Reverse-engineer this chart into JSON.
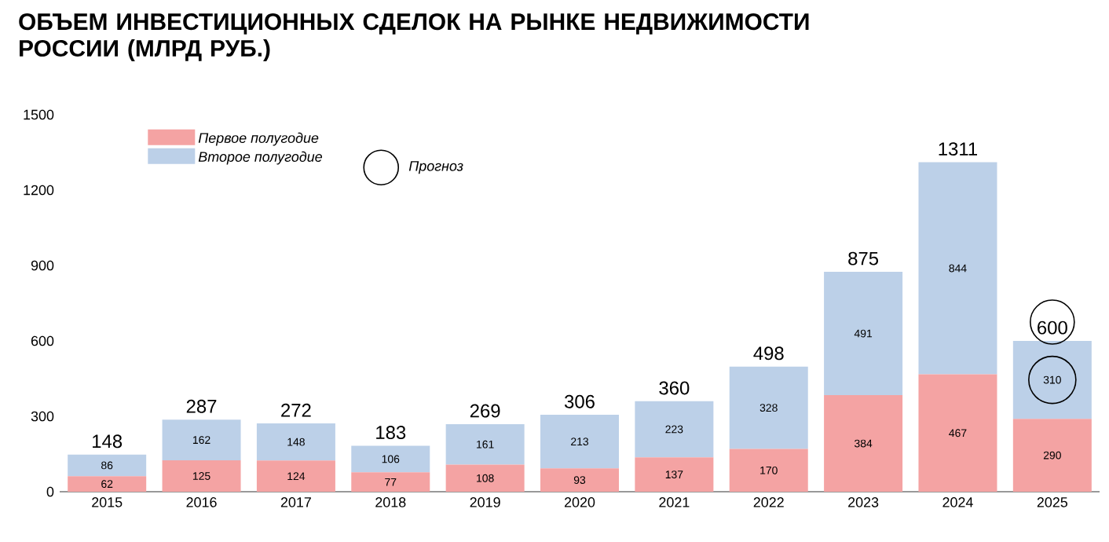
{
  "chart_data": {
    "type": "bar",
    "stacked": true,
    "title": "ОБЪЕМ ИНВЕСТИЦИОННЫХ СДЕЛОК НА РЫНКЕ НЕДВИЖИМОСТИ РОССИИ (МЛРД РУБ.)",
    "categories": [
      "2015",
      "2016",
      "2017",
      "2018",
      "2019",
      "2020",
      "2021",
      "2022",
      "2023",
      "2024",
      "2025"
    ],
    "series": [
      {
        "name": "Первое полугодие",
        "color": "#f4a3a3",
        "values": [
          62,
          125,
          124,
          77,
          108,
          93,
          137,
          170,
          384,
          467,
          290
        ]
      },
      {
        "name": "Второе полугодие",
        "color": "#bcd0e8",
        "values": [
          86,
          162,
          148,
          106,
          161,
          213,
          223,
          328,
          491,
          844,
          310
        ]
      }
    ],
    "totals": [
      "148",
      "287",
      "272",
      "183",
      "269",
      "306",
      "360",
      "498",
      "875",
      "1311",
      "600"
    ],
    "data_labels": true,
    "ylim": [
      0,
      1500
    ],
    "yticks": [
      0,
      300,
      600,
      900,
      1200,
      1500
    ],
    "legend": "top left",
    "annotations": [
      "Прогноз"
    ]
  }
}
